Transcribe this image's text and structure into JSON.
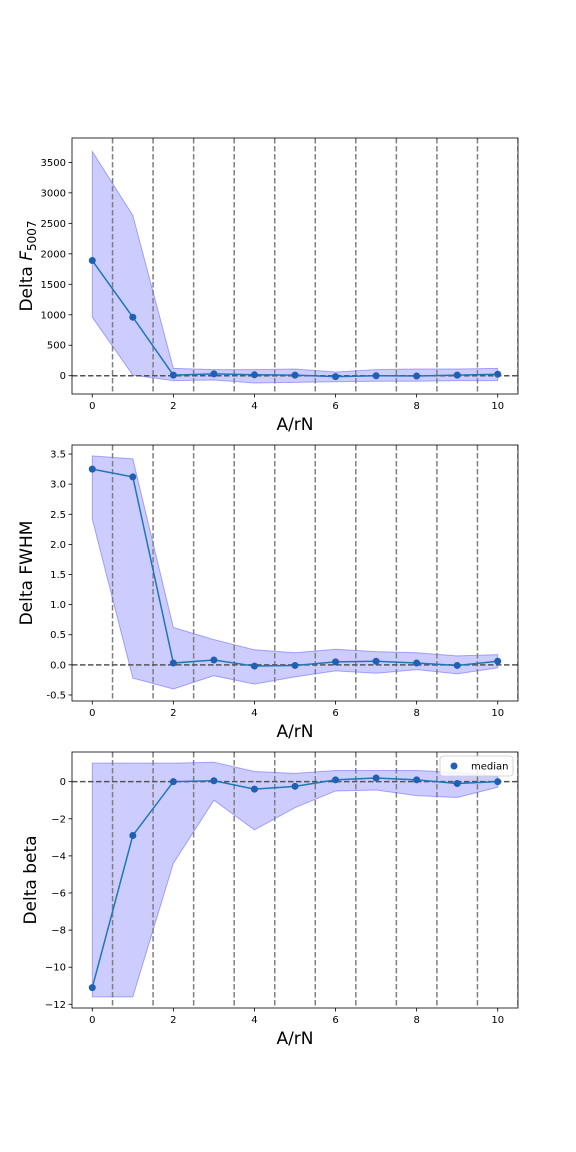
{
  "chart_data": [
    {
      "type": "line",
      "ylabel_prefix": "Delta ",
      "ylabel_symbol": "F",
      "ylabel_sub": "5007",
      "xlabel": "A/rN",
      "xlim": [
        -0.5,
        10.5
      ],
      "ylim": [
        -300,
        3900
      ],
      "x": [
        0,
        1,
        2,
        3,
        4,
        5,
        6,
        7,
        8,
        9,
        10
      ],
      "x_ticks": [
        0,
        2,
        4,
        6,
        8,
        10
      ],
      "y_ticks": [
        0,
        500,
        1000,
        1500,
        2000,
        2500,
        3000,
        3500
      ],
      "series": [
        {
          "values": [
            1890,
            960,
            10,
            30,
            15,
            10,
            -15,
            0,
            -5,
            10,
            25
          ]
        }
      ],
      "band": {
        "upper": [
          3680,
          2630,
          120,
          100,
          100,
          110,
          60,
          100,
          110,
          110,
          120
        ],
        "lower": [
          960,
          10,
          -80,
          -70,
          -120,
          -110,
          -100,
          -90,
          -90,
          -80,
          -80
        ]
      },
      "vlines": [
        0.5,
        1.5,
        2.5,
        3.5,
        4.5,
        5.5,
        6.5,
        7.5,
        8.5,
        9.5,
        10.5
      ],
      "hline": 0,
      "legend": null
    },
    {
      "type": "line",
      "ylabel": "Delta FWHM",
      "xlabel": "A/rN",
      "xlim": [
        -0.5,
        10.5
      ],
      "ylim": [
        -0.6,
        3.65
      ],
      "x": [
        0,
        1,
        2,
        3,
        4,
        5,
        6,
        7,
        8,
        9,
        10
      ],
      "x_ticks": [
        0,
        2,
        4,
        6,
        8,
        10
      ],
      "y_ticks": [
        -0.5,
        0.0,
        0.5,
        1.0,
        1.5,
        2.0,
        2.5,
        3.0,
        3.5
      ],
      "series": [
        {
          "values": [
            3.25,
            3.12,
            0.03,
            0.08,
            -0.02,
            -0.01,
            0.05,
            0.06,
            0.03,
            -0.01,
            0.06
          ]
        }
      ],
      "band": {
        "upper": [
          3.47,
          3.42,
          0.62,
          0.42,
          0.25,
          0.2,
          0.26,
          0.22,
          0.2,
          0.15,
          0.17
        ],
        "lower": [
          2.42,
          -0.22,
          -0.4,
          -0.18,
          -0.32,
          -0.2,
          -0.1,
          -0.14,
          -0.08,
          -0.15,
          -0.05
        ]
      },
      "vlines": [
        0.5,
        1.5,
        2.5,
        3.5,
        4.5,
        5.5,
        6.5,
        7.5,
        8.5,
        9.5,
        10.5
      ],
      "hline": 0,
      "legend": null
    },
    {
      "type": "line",
      "ylabel": "Delta beta",
      "xlabel": "A/rN",
      "xlim": [
        -0.5,
        10.5
      ],
      "ylim": [
        -12.2,
        1.6
      ],
      "x": [
        0,
        1,
        2,
        3,
        4,
        5,
        6,
        7,
        8,
        9,
        10
      ],
      "x_ticks": [
        0,
        2,
        4,
        6,
        8,
        10
      ],
      "y_ticks": [
        -12,
        -10,
        -8,
        -6,
        -4,
        -2,
        0
      ],
      "series": [
        {
          "name": "median",
          "values": [
            -11.1,
            -2.9,
            0.0,
            0.05,
            -0.4,
            -0.25,
            0.1,
            0.2,
            0.1,
            -0.1,
            0.0
          ]
        }
      ],
      "band": {
        "upper": [
          1.0,
          1.0,
          1.0,
          1.05,
          0.55,
          0.45,
          0.6,
          0.6,
          0.6,
          0.5,
          0.3
        ],
        "lower": [
          -11.6,
          -11.6,
          -4.4,
          -1.0,
          -2.6,
          -1.4,
          -0.5,
          -0.45,
          -0.75,
          -0.85,
          -0.3
        ]
      },
      "vlines": [
        0.5,
        1.5,
        2.5,
        3.5,
        4.5,
        5.5,
        6.5,
        7.5,
        8.5,
        9.5,
        10.5
      ],
      "hline": 0,
      "legend": {
        "location": "upper-right",
        "label": "median"
      }
    }
  ],
  "colors": {
    "line": "#1f77b4",
    "marker": "#1f5fb4",
    "band_fill": "#0000ff",
    "band_edge": "#0000ff",
    "dashed": "#7f7f7f",
    "hline": "#555555"
  }
}
